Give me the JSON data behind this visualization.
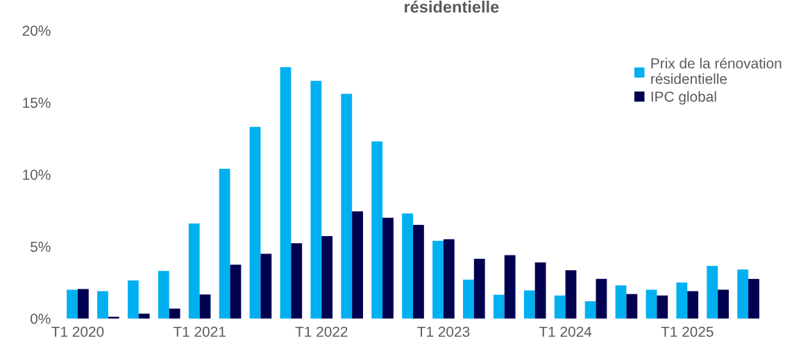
{
  "chart_data": {
    "type": "bar",
    "title": "résidentielle",
    "categories": [
      "T1 2020",
      null,
      null,
      null,
      "T1 2021",
      null,
      null,
      null,
      "T1 2022",
      null,
      null,
      null,
      "T1 2023",
      null,
      null,
      null,
      "T1 2024",
      null,
      null,
      null,
      "T1 2025",
      null,
      null
    ],
    "series": [
      {
        "name": "Prix de la rénovation résidentielle",
        "color": "#00b0f0",
        "values": [
          2.0,
          1.9,
          2.65,
          3.3,
          6.6,
          10.4,
          13.3,
          17.45,
          16.5,
          15.6,
          12.3,
          7.3,
          5.4,
          2.7,
          1.65,
          1.95,
          1.6,
          1.2,
          2.3,
          2.0,
          2.5,
          3.65,
          3.4
        ]
      },
      {
        "name": "IPC global",
        "color": "#000050",
        "values": [
          2.05,
          0.12,
          0.34,
          0.69,
          1.67,
          3.74,
          4.5,
          5.23,
          5.72,
          7.44,
          7.0,
          6.5,
          5.5,
          4.15,
          4.4,
          3.9,
          3.35,
          2.75,
          1.7,
          1.6,
          1.9,
          2.0,
          2.75
        ]
      }
    ],
    "ylim": [
      0,
      20
    ],
    "yticks": [
      {
        "value": 0,
        "label": "0%"
      },
      {
        "value": 5,
        "label": "5%"
      },
      {
        "value": 10,
        "label": "10%"
      },
      {
        "value": 15,
        "label": "15%"
      },
      {
        "value": 20,
        "label": "20%"
      }
    ],
    "grid": false,
    "legend": "top right"
  }
}
